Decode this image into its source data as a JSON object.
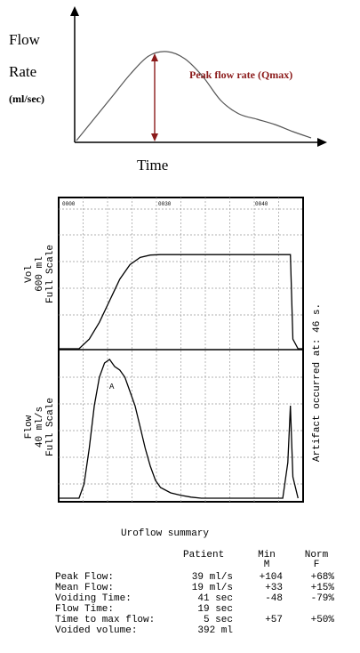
{
  "schematic": {
    "ylabel_line1": "Flow",
    "ylabel_line2": "Rate",
    "ylabel_line3": "(ml/sec)",
    "xlabel": "Time",
    "annotation": "Peak flow rate (Qmax)",
    "annotation_color": "#8b1a1a"
  },
  "tracing": {
    "top_ticks": [
      "0000",
      "0030",
      "0040"
    ],
    "vol_label_line1": "Vol",
    "vol_label_line2": "600 ml",
    "vol_label_line3": "Full Scale",
    "flow_label_line1": "Flow",
    "flow_label_line2": "40 ml/s",
    "flow_label_line3": "Full Scale",
    "artifact_label": "Artifact occurred at: 46 s.",
    "marker": "A"
  },
  "summary": {
    "title": "Uroflow summary",
    "col_patient": "Patient",
    "col_min": "Min",
    "col_min_sub": "M",
    "col_norm": "Norm",
    "col_norm_sub": "F",
    "rows": [
      {
        "label": "Peak Flow:",
        "patient": "39 ml/s",
        "min": "+104",
        "norm": "+68%"
      },
      {
        "label": "Mean Flow:",
        "patient": "19 ml/s",
        "min": "+33",
        "norm": "+15%"
      },
      {
        "label": "Voiding Time:",
        "patient": "41 sec",
        "min": "-48",
        "norm": "-79%"
      },
      {
        "label": "Flow Time:",
        "patient": "19 sec",
        "min": "",
        "norm": ""
      },
      {
        "label": "Time to max flow:",
        "patient": "5 sec",
        "min": "+57",
        "norm": "+50%"
      },
      {
        "label": "Voided volume:",
        "patient": "392 ml",
        "min": "",
        "norm": ""
      }
    ]
  },
  "chart_data": [
    {
      "type": "line",
      "title": "",
      "xlabel": "Time",
      "ylabel": "Flow Rate (ml/sec)",
      "series": [
        {
          "values": [
            0,
            0.25,
            0.5,
            0.75,
            0.95,
            1.0,
            0.92,
            0.72,
            0.45,
            0.3,
            0.24,
            0.18,
            0.1,
            0.03
          ]
        }
      ],
      "annotations": [
        "Peak flow rate (Qmax)"
      ]
    },
    {
      "type": "line",
      "title": "",
      "xlabel": "",
      "ylabel": "Vol 600 ml Full Scale",
      "ylim": [
        0,
        600
      ],
      "series": [
        {
          "x": [
            0,
            4,
            6,
            8,
            10,
            12,
            14,
            16,
            18,
            20,
            22,
            24,
            26,
            44,
            45,
            45.5,
            46,
            47,
            48
          ],
          "values": [
            0,
            0,
            40,
            110,
            200,
            290,
            350,
            380,
            390,
            392,
            392,
            392,
            392,
            392,
            392,
            392,
            40,
            0,
            0
          ]
        }
      ]
    },
    {
      "type": "line",
      "title": "",
      "xlabel": "",
      "ylabel": "Flow 40 ml/s Full Scale",
      "ylim": [
        0,
        40
      ],
      "series": [
        {
          "x": [
            0,
            4,
            5,
            6,
            7,
            8,
            9,
            10,
            11,
            12,
            13,
            14,
            15,
            16,
            17,
            18,
            19,
            20,
            22,
            24,
            26,
            28,
            44,
            45,
            45.5,
            46,
            47
          ],
          "values": [
            0,
            0,
            4,
            14,
            26,
            34,
            38,
            39,
            37,
            36,
            34,
            30,
            26,
            20,
            14,
            9,
            5,
            3,
            1.5,
            0.8,
            0.3,
            0,
            0,
            10,
            26,
            6,
            0
          ]
        }
      ]
    }
  ]
}
